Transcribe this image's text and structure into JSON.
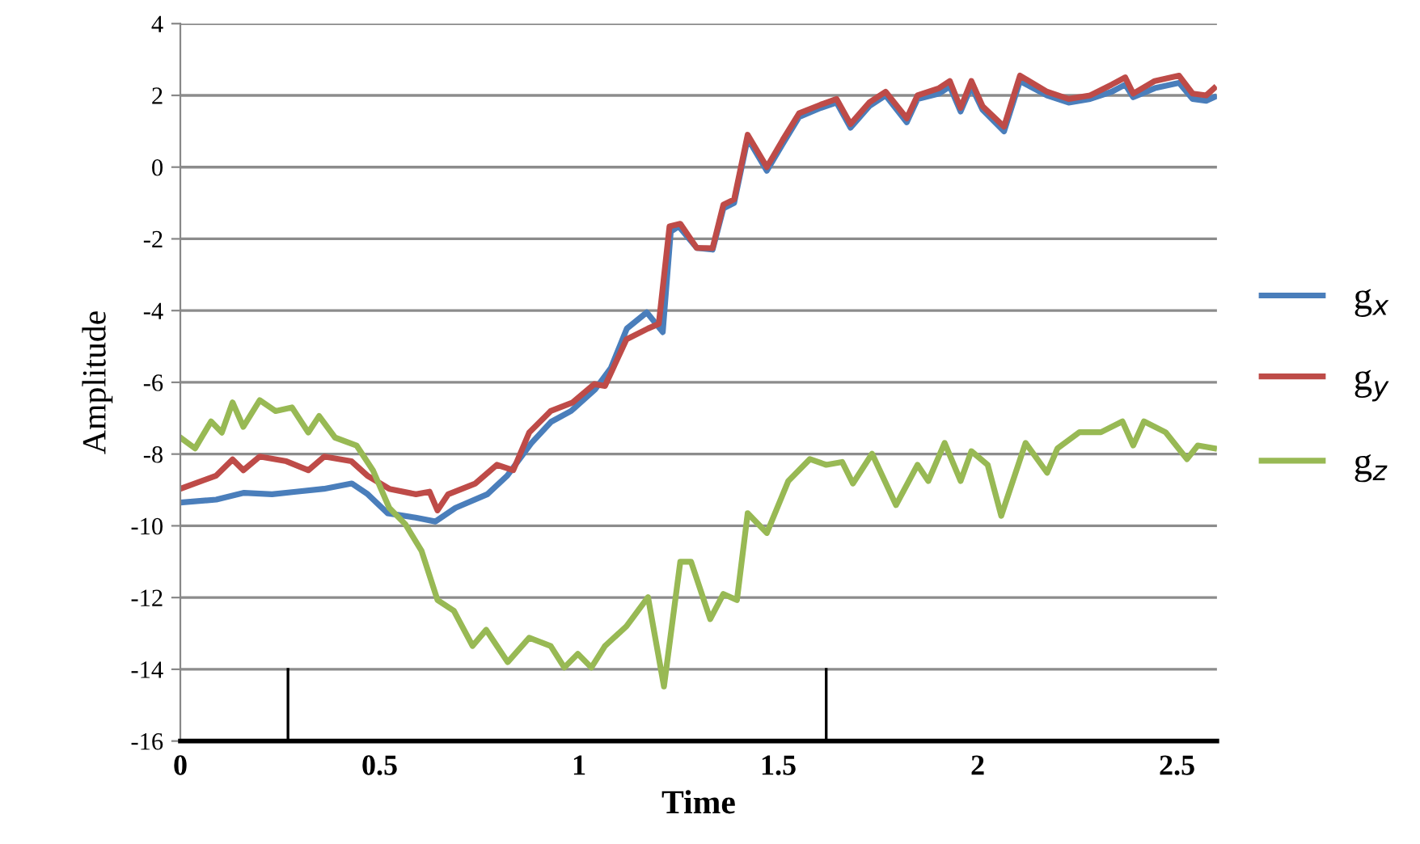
{
  "chart_data": {
    "type": "line",
    "xlabel": "Time",
    "ylabel": "Amplitude",
    "xlim": [
      0,
      2.6
    ],
    "xticks": [
      0,
      0.5,
      1,
      1.5,
      2,
      2.5
    ],
    "ylim": [
      -16,
      4
    ],
    "yticks": [
      -16,
      -14,
      -12,
      -10,
      -8,
      -6,
      -4,
      -2,
      0,
      2,
      4
    ],
    "grid": "y",
    "legend": "right",
    "marker": "none",
    "line_style": "solid",
    "ref_lines": [
      {
        "axis": "x",
        "value": 0.27,
        "color": "#000000"
      },
      {
        "axis": "x",
        "value": 1.62,
        "color": "#000000"
      }
    ],
    "series": [
      {
        "name": "g$_{x}$",
        "color": "#4a7ebb",
        "x": [
          0,
          0.09,
          0.16,
          0.23,
          0.29,
          0.36,
          0.43,
          0.47,
          0.52,
          0.59,
          0.64,
          0.69,
          0.77,
          0.82,
          0.88,
          0.93,
          0.98,
          1.04,
          1.08,
          1.12,
          1.17,
          1.21,
          1.23,
          1.25,
          1.295,
          1.335,
          1.362,
          1.389,
          1.423,
          1.471,
          1.511,
          1.552,
          1.606,
          1.646,
          1.681,
          1.728,
          1.769,
          1.822,
          1.849,
          1.903,
          1.93,
          1.957,
          1.984,
          2.012,
          2.066,
          2.106,
          2.174,
          2.228,
          2.282,
          2.336,
          2.37,
          2.39,
          2.444,
          2.505,
          2.539,
          2.573,
          2.593
        ],
        "values": [
          -9.35,
          -9.27,
          -9.08,
          -9.12,
          -9.05,
          -8.97,
          -8.82,
          -9.12,
          -9.65,
          -9.77,
          -9.88,
          -9.5,
          -9.12,
          -8.6,
          -7.7,
          -7.1,
          -6.8,
          -6.2,
          -5.6,
          -4.5,
          -4.05,
          -4.6,
          -1.8,
          -1.65,
          -2.25,
          -2.3,
          -1.15,
          -1.0,
          0.8,
          -0.1,
          0.65,
          1.4,
          1.65,
          1.8,
          1.1,
          1.7,
          2.0,
          1.25,
          1.9,
          2.05,
          2.25,
          1.55,
          2.25,
          1.6,
          1.0,
          2.4,
          2.0,
          1.8,
          1.9,
          2.1,
          2.3,
          1.95,
          2.2,
          2.35,
          1.9,
          1.85,
          1.95
        ]
      },
      {
        "name": "g$_{y}$",
        "color": "#be4b48",
        "x": [
          0,
          0.09,
          0.131,
          0.158,
          0.199,
          0.266,
          0.321,
          0.361,
          0.429,
          0.469,
          0.524,
          0.591,
          0.625,
          0.645,
          0.672,
          0.74,
          0.794,
          0.835,
          0.875,
          0.929,
          0.984,
          1.038,
          1.065,
          1.119,
          1.173,
          1.2,
          1.227,
          1.254,
          1.295,
          1.335,
          1.362,
          1.389,
          1.423,
          1.471,
          1.511,
          1.552,
          1.606,
          1.646,
          1.681,
          1.728,
          1.769,
          1.822,
          1.849,
          1.903,
          1.93,
          1.957,
          1.984,
          2.012,
          2.066,
          2.106,
          2.174,
          2.228,
          2.282,
          2.336,
          2.37,
          2.39,
          2.444,
          2.505,
          2.539,
          2.573,
          2.593
        ],
        "values": [
          -8.97,
          -8.6,
          -8.15,
          -8.45,
          -8.07,
          -8.2,
          -8.45,
          -8.07,
          -8.2,
          -8.6,
          -8.97,
          -9.12,
          -9.05,
          -9.57,
          -9.12,
          -8.82,
          -8.3,
          -8.45,
          -7.4,
          -6.8,
          -6.56,
          -6.05,
          -6.1,
          -4.8,
          -4.5,
          -4.37,
          -1.65,
          -1.58,
          -2.25,
          -2.26,
          -1.05,
          -0.9,
          0.9,
          0.0,
          0.76,
          1.5,
          1.74,
          1.9,
          1.2,
          1.8,
          2.1,
          1.36,
          2.0,
          2.2,
          2.4,
          1.65,
          2.4,
          1.7,
          1.13,
          2.55,
          2.1,
          1.9,
          2.0,
          2.3,
          2.5,
          2.05,
          2.4,
          2.55,
          2.05,
          2.0,
          2.2
        ]
      },
      {
        "name": "g$_{z}$",
        "color": "#98b954",
        "x": [
          0,
          0.037,
          0.077,
          0.104,
          0.131,
          0.158,
          0.199,
          0.239,
          0.28,
          0.321,
          0.348,
          0.388,
          0.442,
          0.483,
          0.524,
          0.564,
          0.605,
          0.645,
          0.686,
          0.733,
          0.767,
          0.821,
          0.875,
          0.929,
          0.963,
          0.997,
          1.031,
          1.065,
          1.119,
          1.173,
          1.213,
          1.254,
          1.281,
          1.329,
          1.362,
          1.396,
          1.423,
          1.471,
          1.525,
          1.579,
          1.62,
          1.66,
          1.687,
          1.735,
          1.795,
          1.849,
          1.876,
          1.917,
          1.957,
          1.984,
          2.025,
          2.059,
          2.12,
          2.174,
          2.2,
          2.255,
          2.309,
          2.363,
          2.39,
          2.417,
          2.471,
          2.525,
          2.552,
          2.593
        ],
        "values": [
          -7.54,
          -7.84,
          -7.09,
          -7.4,
          -6.56,
          -7.24,
          -6.5,
          -6.8,
          -6.7,
          -7.4,
          -6.94,
          -7.54,
          -7.76,
          -8.45,
          -9.5,
          -9.95,
          -10.7,
          -12.07,
          -12.37,
          -13.35,
          -12.9,
          -13.8,
          -13.12,
          -13.35,
          -13.95,
          -13.57,
          -13.95,
          -13.35,
          -12.8,
          -11.99,
          -14.48,
          -11.0,
          -11.0,
          -12.6,
          -11.9,
          -12.07,
          -9.65,
          -10.2,
          -8.75,
          -8.14,
          -8.3,
          -8.22,
          -8.82,
          -7.99,
          -9.42,
          -8.3,
          -8.75,
          -7.69,
          -8.75,
          -7.92,
          -8.3,
          -9.72,
          -7.69,
          -8.52,
          -7.84,
          -7.39,
          -7.39,
          -7.09,
          -7.76,
          -7.09,
          -7.39,
          -8.14,
          -7.76,
          -7.84
        ]
      }
    ]
  }
}
